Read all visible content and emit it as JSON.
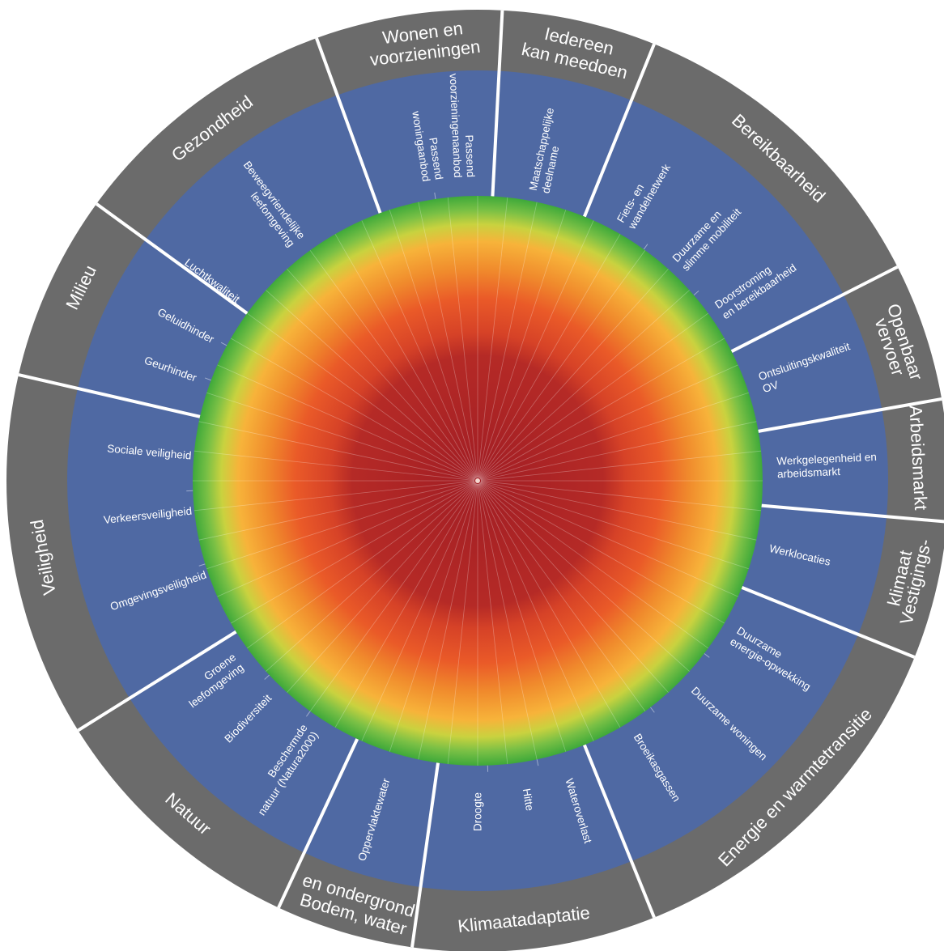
{
  "colors": {
    "outer_ring": "#6b6b6b",
    "label_band": "#4f69a3",
    "divider": "#ffffff",
    "gradient_stops": [
      "#a11d24",
      "#b52a26",
      "#d64227",
      "#ea5a28",
      "#f08a2c",
      "#f7b33a",
      "#c9d23f",
      "#7ac045",
      "#3ea93a"
    ]
  },
  "categories": [
    {
      "id": "wonen",
      "label_lines": [
        "Wonen en",
        "voorzieningen"
      ],
      "indicators": [
        "Passend woningaanbod",
        "Passend voorzieningenaanbod"
      ]
    },
    {
      "id": "iedereen",
      "label_lines": [
        "Iedereen",
        "kan meedoen"
      ],
      "indicators": [
        "Maatschappelijke deelname"
      ]
    },
    {
      "id": "bereikbaarheid",
      "label_lines": [
        "Bereikbaarheid"
      ],
      "indicators": [
        "Fiets- en wandelnetwerk",
        "Duurzame en slimme mobiliteit",
        "Doorstroming en bereikbaarheid"
      ]
    },
    {
      "id": "ov",
      "label_lines": [
        "Openbaar",
        "vervoer"
      ],
      "indicators": [
        "Ontsluitingskwaliteit OV"
      ]
    },
    {
      "id": "arbeidsmarkt",
      "label_lines": [
        "Arbeidsmarkt"
      ],
      "indicators": [
        "Werkgelegenheid en arbeidsmarkt"
      ]
    },
    {
      "id": "vestigingsklimaat",
      "label_lines": [
        "Vestigings-",
        "klimaat"
      ],
      "indicators": [
        "Werklocaties"
      ]
    },
    {
      "id": "energie",
      "label_lines": [
        "Energie en warmtetransitie"
      ],
      "indicators": [
        "Duurzame energie-opwekking",
        "Duurzame woningen",
        "Broeikasgassen"
      ]
    },
    {
      "id": "klimaat",
      "label_lines": [
        "Klimaatadaptatie"
      ],
      "indicators": [
        "Wateroverlast",
        "Hitte",
        "Droogte"
      ]
    },
    {
      "id": "bodem",
      "label_lines": [
        "Bodem, water",
        "en ondergrond"
      ],
      "indicators": [
        "Oppervlaktewater"
      ]
    },
    {
      "id": "natuur",
      "label_lines": [
        "Natuur"
      ],
      "indicators": [
        "Beschermde natuur (Natura2000)",
        "Biodiversiteit",
        "Groene leefomgeving"
      ]
    },
    {
      "id": "veiligheid",
      "label_lines": [
        "Veiligheid"
      ],
      "indicators": [
        "Omgevingsveiligheid",
        "Verkeersveiligheid",
        "Sociale veiligheid"
      ]
    },
    {
      "id": "milieu",
      "label_lines": [
        "Milieu"
      ],
      "indicators": [
        "Geurhinder",
        "Geluidhinder",
        "Luchtkwaliteit"
      ]
    },
    {
      "id": "gezondheid",
      "label_lines": [
        "Gezondheid"
      ],
      "indicators": [
        "Beweegvriendelijke leefomgeving"
      ]
    }
  ]
}
